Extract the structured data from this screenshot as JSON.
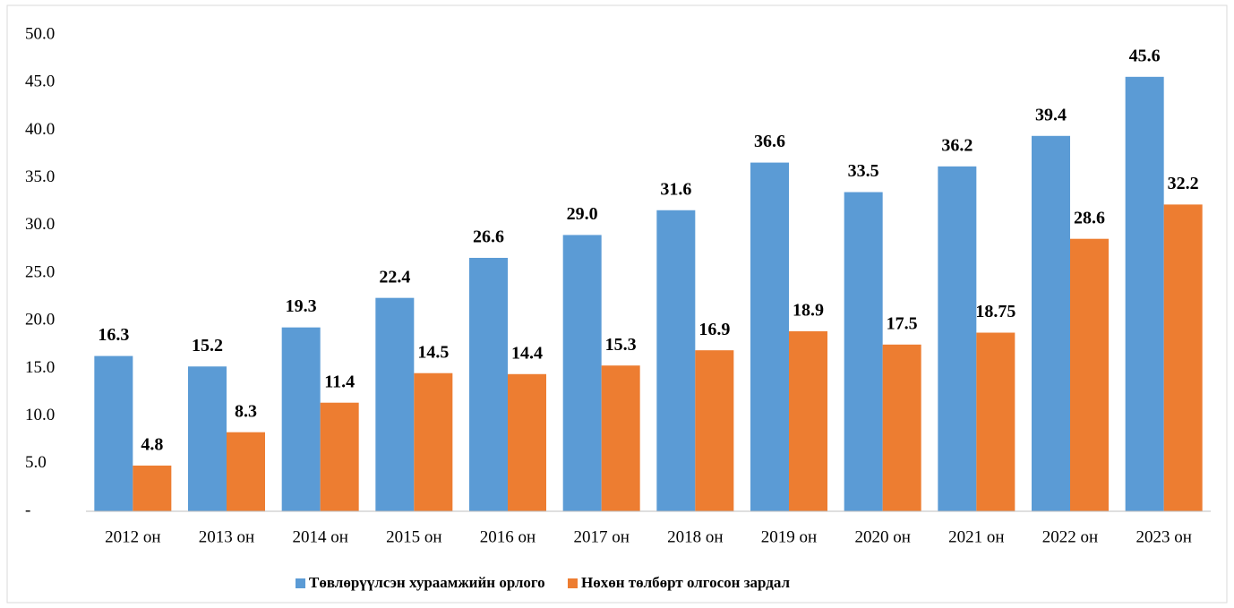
{
  "chart_data": {
    "type": "bar",
    "categories": [
      "2012 он",
      "2013 он",
      "2014 он",
      "2015 он",
      "2016 он",
      "2017 он",
      "2018 он",
      "2019 он",
      "2020 он",
      "2021 он",
      "2022 он",
      "2023 он"
    ],
    "series": [
      {
        "name": "Төвлөрүүлсэн хураамжийн орлого",
        "color": "#5b9bd5",
        "values": [
          16.3,
          15.2,
          19.3,
          22.4,
          26.6,
          29.0,
          31.6,
          36.6,
          33.5,
          36.2,
          39.4,
          45.6
        ],
        "value_labels": [
          "16.3",
          "15.2",
          "19.3",
          "22.4",
          "26.6",
          "29.0",
          "31.6",
          "36.6",
          "33.5",
          "36.2",
          "39.4",
          "45.6"
        ]
      },
      {
        "name": "Нөхөн төлбөрт олгосон зардал",
        "color": "#ed7d31",
        "values": [
          4.8,
          8.3,
          11.4,
          14.5,
          14.4,
          15.3,
          16.9,
          18.9,
          17.5,
          18.75,
          28.6,
          32.2
        ],
        "value_labels": [
          "4.8",
          "8.3",
          "11.4",
          "14.5",
          "14.4",
          "15.3",
          "16.9",
          "18.9",
          "17.5",
          "18.75",
          "28.6",
          "32.2"
        ]
      }
    ],
    "ylim": [
      0,
      50
    ],
    "yticks": [
      {
        "value": 0,
        "label": "-"
      },
      {
        "value": 5,
        "label": "5.0"
      },
      {
        "value": 10,
        "label": "10.0"
      },
      {
        "value": 15,
        "label": "15.0"
      },
      {
        "value": 20,
        "label": "20.0"
      },
      {
        "value": 25,
        "label": "25.0"
      },
      {
        "value": 30,
        "label": "30.0"
      },
      {
        "value": 35,
        "label": "35.0"
      },
      {
        "value": 40,
        "label": "40.0"
      },
      {
        "value": 45,
        "label": "45.0"
      },
      {
        "value": 50,
        "label": "50.0"
      }
    ],
    "grid": false,
    "legend": "bottom"
  }
}
